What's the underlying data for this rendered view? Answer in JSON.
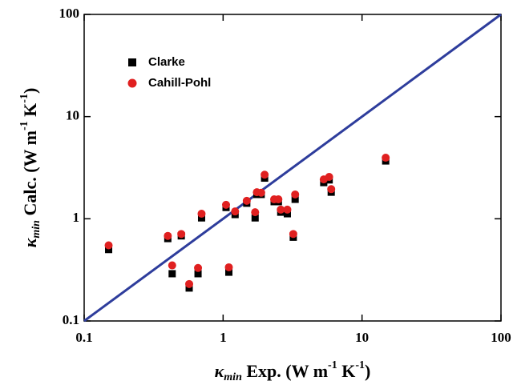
{
  "chart_data": {
    "type": "scatter",
    "xlabel_parts": [
      "κ",
      "min",
      " Exp. (W m",
      "-1",
      " K",
      "-1",
      ")"
    ],
    "ylabel_parts": [
      "κ",
      "min",
      " Calc. (W m",
      "-1",
      " K",
      "-1",
      ")"
    ],
    "xlog": true,
    "ylog": true,
    "xlim": [
      0.1,
      100
    ],
    "ylim": [
      0.1,
      100
    ],
    "xticks": [
      0.1,
      1,
      10,
      100
    ],
    "yticks": [
      0.1,
      1,
      10,
      100
    ],
    "reference_line": {
      "x": [
        0.1,
        100
      ],
      "y": [
        0.1,
        100
      ],
      "color": "#2e3d9c"
    },
    "x": [
      0.15,
      0.4,
      0.43,
      0.5,
      0.57,
      0.66,
      0.7,
      1.05,
      1.1,
      1.22,
      1.48,
      1.7,
      1.75,
      1.88,
      1.99,
      2.33,
      2.5,
      2.6,
      2.9,
      3.2,
      3.3,
      5.3,
      5.8,
      6.0,
      14.8
    ],
    "series": [
      {
        "name": "Clarke",
        "color": "#000000",
        "marker": "square",
        "values": [
          0.5,
          0.64,
          0.29,
          0.68,
          0.21,
          0.29,
          1.02,
          1.29,
          0.3,
          1.1,
          1.42,
          1.02,
          1.73,
          1.73,
          2.5,
          1.47,
          1.47,
          1.16,
          1.12,
          0.66,
          1.55,
          2.26,
          2.4,
          1.82,
          3.68
        ]
      },
      {
        "name": "Cahill-Pohl",
        "color": "#e02020",
        "marker": "circle",
        "values": [
          0.55,
          0.68,
          0.35,
          0.71,
          0.23,
          0.33,
          1.12,
          1.37,
          0.335,
          1.18,
          1.5,
          1.16,
          1.82,
          1.8,
          2.7,
          1.55,
          1.55,
          1.23,
          1.23,
          0.71,
          1.73,
          2.43,
          2.57,
          1.95,
          3.96
        ]
      }
    ],
    "legend": "upper-left"
  }
}
